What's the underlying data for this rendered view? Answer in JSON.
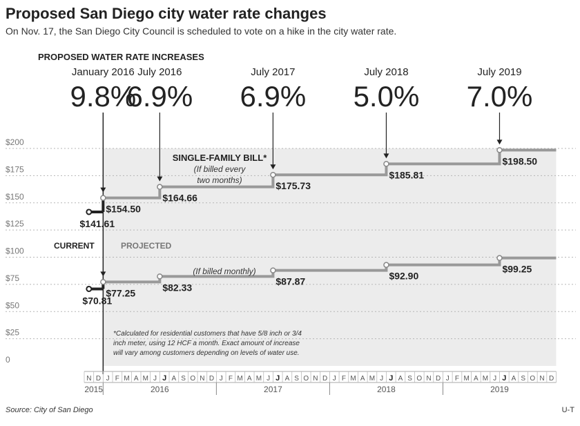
{
  "header": {
    "title": "Proposed San Diego city water rate changes",
    "subtitle": "On Nov. 17, the San Diego City Council is scheduled to vote on a hike in the city water rate."
  },
  "section_title": "PROPOSED WATER RATE INCREASES",
  "footer": {
    "source": "Source: City of San Diego",
    "credit": "U-T"
  },
  "chart_data": {
    "type": "line",
    "title": "Proposed San Diego city water rate changes",
    "ylim": [
      0,
      200
    ],
    "yticks": [
      "0",
      "$25",
      "$50",
      "$75",
      "$100",
      "$125",
      "$150",
      "$175",
      "$200"
    ],
    "ytick_values": [
      0,
      25,
      50,
      75,
      100,
      125,
      150,
      175,
      200
    ],
    "grid": true,
    "x_range": [
      "2015-11",
      "2019-12"
    ],
    "month_letters": [
      "J",
      "F",
      "M",
      "A",
      "M",
      "J",
      "J",
      "A",
      "S",
      "O",
      "N",
      "D"
    ],
    "years": [
      "2015",
      "2016",
      "2017",
      "2018",
      "2019"
    ],
    "events": [
      {
        "label": "January 2016",
        "pct": "9.8%",
        "month": "2016-01"
      },
      {
        "label": "July 2016",
        "pct": "6.9%",
        "month": "2016-07"
      },
      {
        "label": "July 2017",
        "pct": "6.9%",
        "month": "2017-07"
      },
      {
        "label": "July 2018",
        "pct": "5.0%",
        "month": "2018-07"
      },
      {
        "label": "July 2019",
        "pct": "7.0%",
        "month": "2019-07"
      }
    ],
    "series": [
      {
        "name": "SINGLE-FAMILY BILL*",
        "note_lines": [
          "(If billed every",
          "two months)"
        ],
        "current": {
          "value": 141.61,
          "label": "$141.61",
          "from": "2015-11",
          "to": "2016-01"
        },
        "steps": [
          {
            "start": "2016-01",
            "value": 154.5,
            "label": "$154.50"
          },
          {
            "start": "2016-07",
            "value": 164.66,
            "label": "$164.66"
          },
          {
            "start": "2017-07",
            "value": 175.73,
            "label": "$175.73"
          },
          {
            "start": "2018-07",
            "value": 185.81,
            "label": "$185.81"
          },
          {
            "start": "2019-07",
            "value": 198.5,
            "label": "$198.50"
          }
        ]
      },
      {
        "note": "(If billed monthly)",
        "current": {
          "value": 70.81,
          "label": "$70.81",
          "from": "2015-11",
          "to": "2016-01"
        },
        "steps": [
          {
            "start": "2016-01",
            "value": 77.25,
            "label": "$77.25"
          },
          {
            "start": "2016-07",
            "value": 82.33,
            "label": "$82.33"
          },
          {
            "start": "2017-07",
            "value": 87.87,
            "label": "$87.87"
          },
          {
            "start": "2018-07",
            "value": 92.9,
            "label": "$92.90"
          },
          {
            "start": "2019-07",
            "value": 99.25,
            "label": "$99.25"
          }
        ]
      }
    ],
    "phase_labels": {
      "current": "CURRENT",
      "projected": "PROJECTED"
    },
    "footnote": [
      "*Calculated for residential customers that have 5/8 inch or 3/4",
      "inch meter, using 12 HCF a month. Exact amount of increase",
      "will vary among customers depending on levels of water use."
    ],
    "colors": {
      "current": "#222222",
      "projected": "#999999",
      "shade": "#ececec",
      "grid": "#b5b5b5"
    }
  }
}
